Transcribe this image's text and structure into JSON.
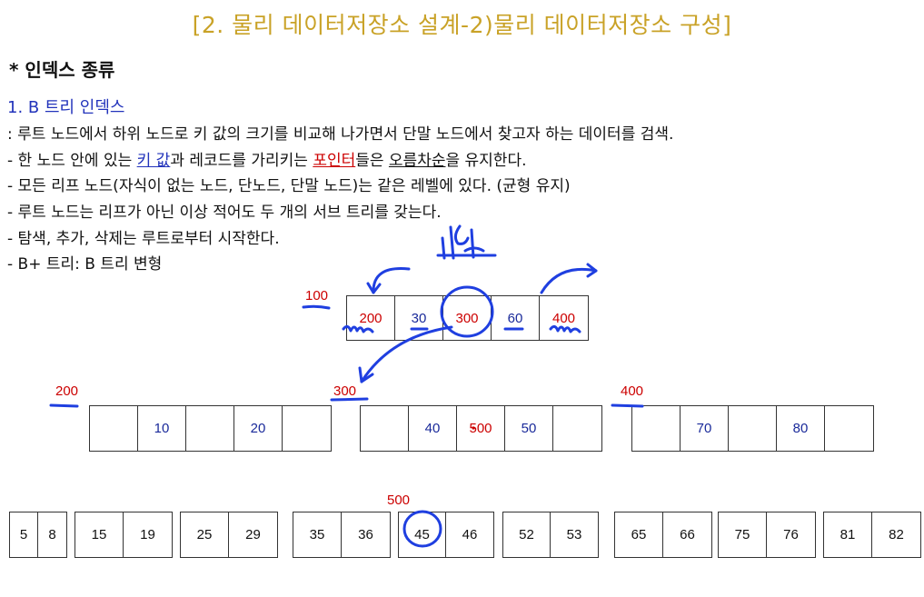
{
  "title": "[2. 물리 데이터저장소 설계-2)물리 데이터저장소 구성]",
  "heading": "* 인덱스 종류",
  "subheading": "1. B 트리 인덱스",
  "lines": {
    "l1": ": 루트 노드에서 하위 노드로 키 값의 크기를 비교해 나가면서 단말 노드에서 찾고자 하는 데이터를 검색.",
    "l2_a": "- 한 노드 안에 있는 ",
    "l2_b": "키 값",
    "l2_c": "과 레코드를 가리키는 ",
    "l2_d": "포인터",
    "l2_e": "들은 ",
    "l2_f": "오름차순",
    "l2_g": "을 유지한다.",
    "l3": "- 모든 리프 노드(자식이 없는 노드, 단노드, 단말 노드)는 같은 레벨에 있다. (균형 유지)",
    "l4": "- 루트 노드는 리프가 아닌 이상 적어도 두 개의 서브 트리를 갖는다.",
    "l5": "- 탐색, 추가, 삭제는 루트로부터 시작한다.",
    "l6": "- B+ 트리: B 트리 변형"
  },
  "root": {
    "label": "100",
    "cells": [
      "200",
      "30",
      "300",
      "60",
      "400"
    ]
  },
  "level2": [
    {
      "label": "200",
      "cells": [
        "",
        "10",
        "",
        "20",
        ""
      ]
    },
    {
      "label": "300",
      "cells": [
        "",
        "40",
        "500",
        "50",
        ""
      ]
    },
    {
      "label": "400",
      "cells": [
        "",
        "70",
        "",
        "80",
        ""
      ]
    }
  ],
  "leaf_label": "500",
  "leaves": [
    [
      "5",
      "8"
    ],
    [
      "15",
      "19"
    ],
    [
      "25",
      "29"
    ],
    [
      "35",
      "36"
    ],
    [
      "45",
      "46"
    ],
    [
      "52",
      "53"
    ],
    [
      "65",
      "66"
    ],
    [
      "75",
      "76"
    ],
    [
      "81",
      "82"
    ]
  ],
  "colors": {
    "title": "#c9a227",
    "key": "#1a2a9a",
    "pointer": "#cc0000",
    "annotation": "#1f3fe0"
  }
}
